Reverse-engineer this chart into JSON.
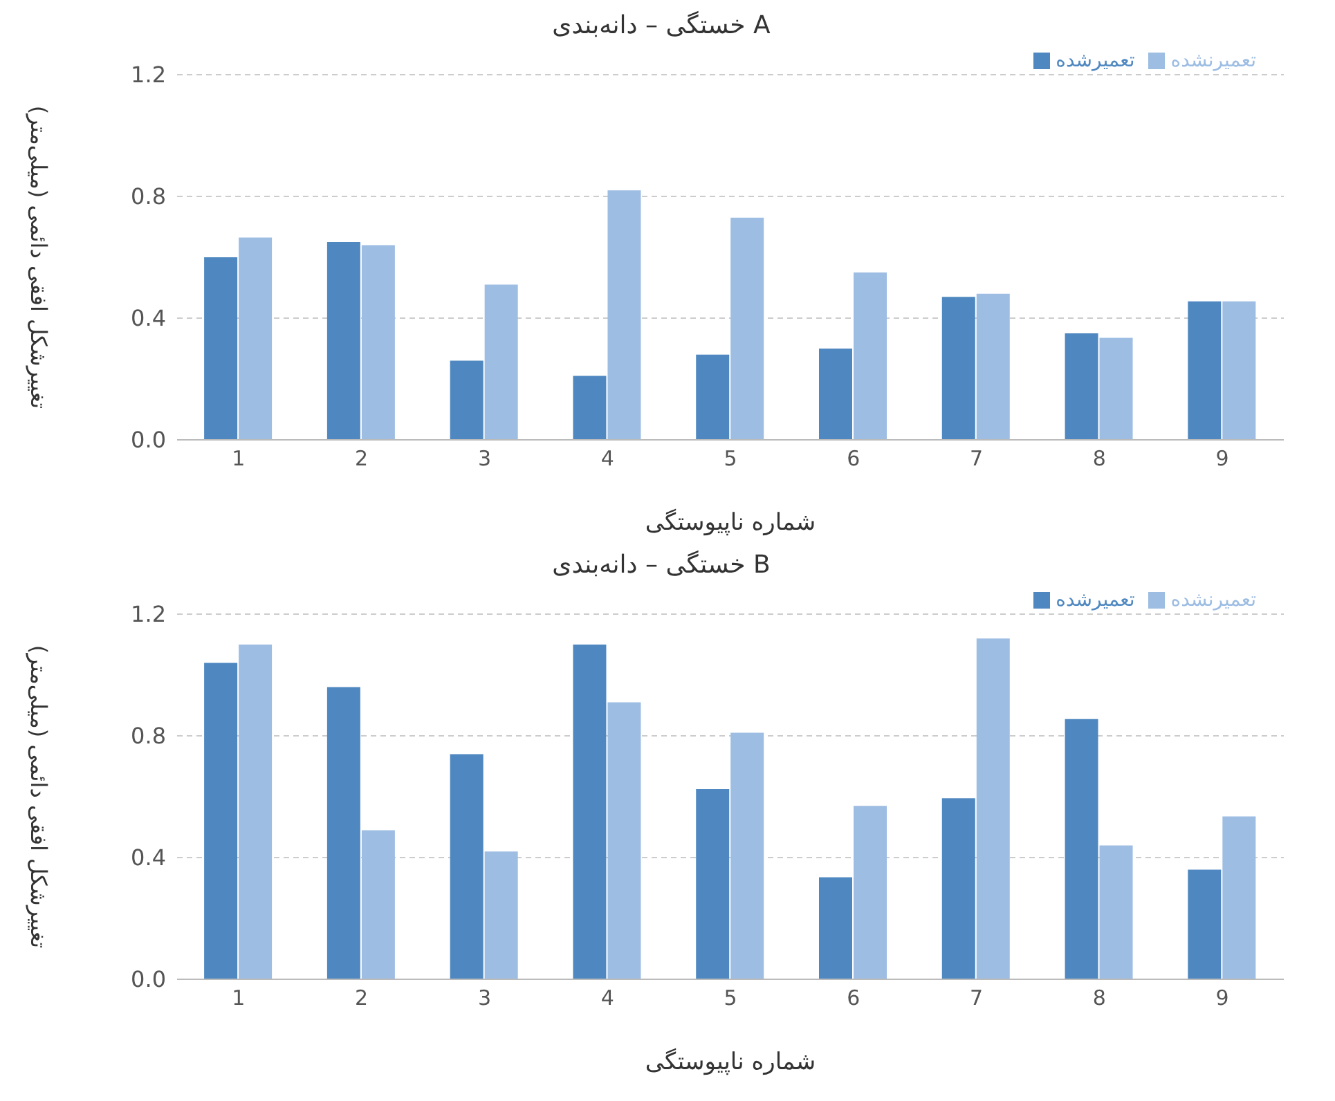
{
  "chart_data": [
    {
      "type": "bar",
      "title": "خستگی – دانه‌بندی A",
      "xlabel": "شماره ناپیوستگی",
      "ylabel": "تغییرشکل افقی دائمی (میلی‌متر)",
      "categories": [
        "1",
        "2",
        "3",
        "4",
        "5",
        "6",
        "7",
        "8",
        "9"
      ],
      "series": [
        {
          "name": "تعمیرشده",
          "color": "#4f88c0",
          "values": [
            0.6,
            0.65,
            0.26,
            0.21,
            0.28,
            0.3,
            0.47,
            0.35,
            0.455
          ]
        },
        {
          "name": "تعمیرنشده",
          "color": "#9dbde3",
          "values": [
            0.665,
            0.64,
            0.51,
            0.82,
            0.73,
            0.55,
            0.48,
            0.335,
            0.455
          ]
        }
      ],
      "ylim": [
        0,
        1.2
      ],
      "yticks": [
        {
          "value": 0,
          "label": "0.0"
        },
        0.4,
        0.8,
        1.2
      ],
      "grid": "y",
      "legend": "top right"
    },
    {
      "type": "bar",
      "title": "خستگی – دانه‌بندی B",
      "xlabel": "شماره ناپیوستگی",
      "ylabel": "تغییرشکل افقی دائمی (میلی‌متر)",
      "categories": [
        "1",
        "2",
        "3",
        "4",
        "5",
        "6",
        "7",
        "8",
        "9"
      ],
      "series": [
        {
          "name": "تعمیرشده",
          "color": "#4f88c0",
          "values": [
            1.04,
            0.96,
            0.74,
            1.1,
            0.625,
            0.335,
            0.595,
            0.855,
            0.36
          ]
        },
        {
          "name": "تعمیرنشده",
          "color": "#9dbde3",
          "values": [
            1.1,
            0.49,
            0.42,
            0.91,
            0.81,
            0.57,
            1.12,
            0.44,
            0.535
          ]
        }
      ],
      "ylim": [
        0,
        1.2
      ],
      "yticks": [
        {
          "value": 0,
          "label": "0.0"
        },
        0.4,
        0.8,
        1.2
      ],
      "grid": "y",
      "legend": "top right"
    }
  ]
}
